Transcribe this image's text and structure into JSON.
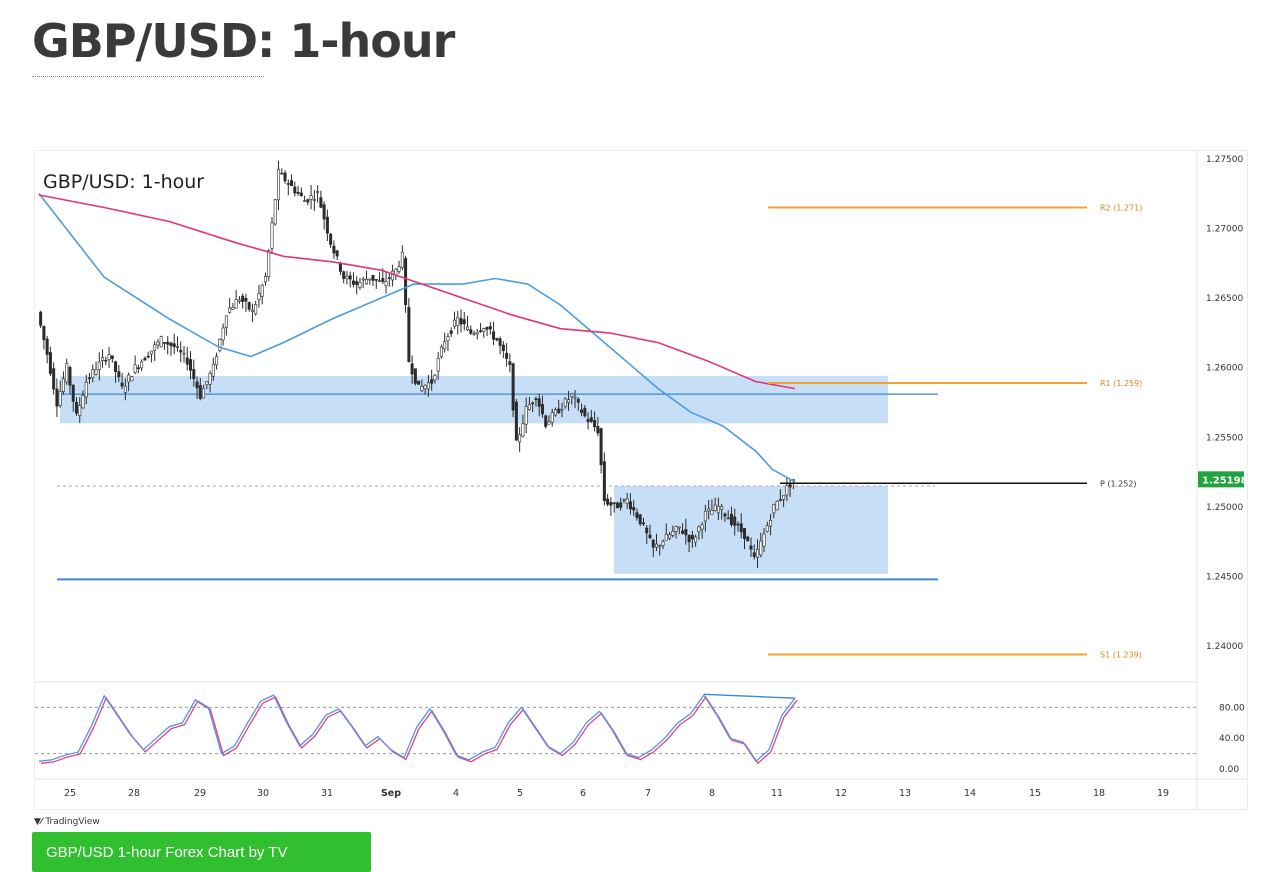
{
  "page": {
    "title": "GBP/USD: 1-hour",
    "tradingview_label": "TradingView",
    "button_label": "GBP/USD 1-hour Forex Chart by TV"
  },
  "colors": {
    "sma_fast": "#4a9ede",
    "sma_slow": "#e2347a",
    "pivot_orange": "#f5a030",
    "zone_fill": "#bcd8f5",
    "support_line": "#3d87d6",
    "candle": "#2b2b2b",
    "price_badge": "#21a340",
    "stoch_k": "#5b8ff0",
    "stoch_d": "#d9487e"
  },
  "chart_data": {
    "type": "candlestick",
    "title": "GBP/USD: 1-hour",
    "price_axis": {
      "range": [
        1.2375,
        1.2752
      ],
      "ticks": [
        "1.27500",
        "1.27000",
        "1.26500",
        "1.26000",
        "1.25500",
        "1.25000",
        "1.24500",
        "1.24000"
      ]
    },
    "x_axis": {
      "ticks": [
        "25",
        "28",
        "29",
        "30",
        "31",
        "Sep",
        "4",
        "5",
        "6",
        "7",
        "8",
        "11",
        "12",
        "13",
        "14",
        "15",
        "18",
        "19"
      ]
    },
    "current_price": "1.25198",
    "pivots": [
      {
        "label": "R2 (1.271)",
        "value": 1.2715
      },
      {
        "label": "R1 (1.259)",
        "value": 1.2589
      },
      {
        "label": "P (1.252)",
        "value": 1.2517
      },
      {
        "label": "S1 (1.239)",
        "value": 1.2394
      }
    ],
    "zones": [
      {
        "name": "upper",
        "from": 1.256,
        "to": 1.2594
      },
      {
        "name": "lower",
        "from": 1.2452,
        "to": 1.2515
      }
    ],
    "support_levels": [
      1.2581,
      1.2448
    ],
    "dashed_level": 1.2515,
    "price_path": [
      [
        0,
        1.264
      ],
      [
        3,
        1.261
      ],
      [
        6,
        1.2575
      ],
      [
        9,
        1.26
      ],
      [
        12,
        1.2565
      ],
      [
        15,
        1.259
      ],
      [
        18,
        1.26
      ],
      [
        22,
        1.261
      ],
      [
        26,
        1.2585
      ],
      [
        30,
        1.26
      ],
      [
        34,
        1.261
      ],
      [
        38,
        1.262
      ],
      [
        42,
        1.2615
      ],
      [
        46,
        1.2605
      ],
      [
        50,
        1.258
      ],
      [
        54,
        1.26
      ],
      [
        58,
        1.264
      ],
      [
        62,
        1.265
      ],
      [
        66,
        1.264
      ],
      [
        70,
        1.2665
      ],
      [
        74,
        1.274
      ],
      [
        78,
        1.273
      ],
      [
        82,
        1.272
      ],
      [
        86,
        1.2725
      ],
      [
        90,
        1.269
      ],
      [
        94,
        1.2665
      ],
      [
        98,
        1.266
      ],
      [
        102,
        1.2665
      ],
      [
        106,
        1.266
      ],
      [
        110,
        1.267
      ],
      [
        112,
        1.268
      ],
      [
        114,
        1.2605
      ],
      [
        117,
        1.2585
      ],
      [
        121,
        1.259
      ],
      [
        125,
        1.262
      ],
      [
        129,
        1.2635
      ],
      [
        133,
        1.2625
      ],
      [
        137,
        1.263
      ],
      [
        141,
        1.262
      ],
      [
        145,
        1.26
      ],
      [
        147,
        1.2545
      ],
      [
        150,
        1.257
      ],
      [
        153,
        1.258
      ],
      [
        156,
        1.256
      ],
      [
        160,
        1.257
      ],
      [
        164,
        1.258
      ],
      [
        168,
        1.2565
      ],
      [
        172,
        1.2555
      ],
      [
        174,
        1.2505
      ],
      [
        177,
        1.25
      ],
      [
        181,
        1.2505
      ],
      [
        185,
        1.249
      ],
      [
        189,
        1.247
      ],
      [
        193,
        1.2478
      ],
      [
        197,
        1.2485
      ],
      [
        201,
        1.2475
      ],
      [
        205,
        1.2495
      ],
      [
        209,
        1.25
      ],
      [
        213,
        1.249
      ],
      [
        217,
        1.248
      ],
      [
        220,
        1.2462
      ],
      [
        223,
        1.248
      ],
      [
        226,
        1.25
      ],
      [
        229,
        1.251
      ],
      [
        232,
        1.252
      ]
    ],
    "sma_fast": [
      [
        0,
        1.2725
      ],
      [
        20,
        1.2665
      ],
      [
        40,
        1.2635
      ],
      [
        55,
        1.2615
      ],
      [
        65,
        1.2608
      ],
      [
        75,
        1.2618
      ],
      [
        90,
        1.2635
      ],
      [
        105,
        1.265
      ],
      [
        115,
        1.266
      ],
      [
        130,
        1.266
      ],
      [
        140,
        1.2664
      ],
      [
        150,
        1.266
      ],
      [
        160,
        1.2645
      ],
      [
        170,
        1.2625
      ],
      [
        180,
        1.2605
      ],
      [
        190,
        1.2585
      ],
      [
        200,
        1.2568
      ],
      [
        210,
        1.2558
      ],
      [
        220,
        1.254
      ],
      [
        225,
        1.2527
      ],
      [
        232,
        1.2518
      ]
    ],
    "sma_slow": [
      [
        0,
        1.2724
      ],
      [
        20,
        1.2715
      ],
      [
        40,
        1.2705
      ],
      [
        60,
        1.269
      ],
      [
        75,
        1.268
      ],
      [
        90,
        1.2676
      ],
      [
        105,
        1.267
      ],
      [
        115,
        1.2662
      ],
      [
        130,
        1.265
      ],
      [
        145,
        1.2638
      ],
      [
        160,
        1.2628
      ],
      [
        175,
        1.2625
      ],
      [
        190,
        1.2618
      ],
      [
        205,
        1.2605
      ],
      [
        220,
        1.259
      ],
      [
        232,
        1.2585
      ]
    ],
    "stochastic": {
      "ticks": [
        "80.00",
        "40.00",
        "0.00"
      ],
      "levels": [
        80,
        20
      ],
      "k": [
        [
          0,
          10
        ],
        [
          4,
          12
        ],
        [
          8,
          18
        ],
        [
          12,
          22
        ],
        [
          16,
          55
        ],
        [
          20,
          95
        ],
        [
          24,
          70
        ],
        [
          28,
          45
        ],
        [
          32,
          25
        ],
        [
          36,
          40
        ],
        [
          40,
          55
        ],
        [
          44,
          60
        ],
        [
          48,
          90
        ],
        [
          52,
          80
        ],
        [
          56,
          20
        ],
        [
          60,
          30
        ],
        [
          64,
          60
        ],
        [
          68,
          88
        ],
        [
          72,
          96
        ],
        [
          76,
          60
        ],
        [
          80,
          30
        ],
        [
          84,
          45
        ],
        [
          88,
          70
        ],
        [
          92,
          78
        ],
        [
          96,
          55
        ],
        [
          100,
          30
        ],
        [
          104,
          42
        ],
        [
          108,
          25
        ],
        [
          112,
          15
        ],
        [
          116,
          55
        ],
        [
          120,
          78
        ],
        [
          124,
          50
        ],
        [
          128,
          18
        ],
        [
          132,
          12
        ],
        [
          136,
          22
        ],
        [
          140,
          28
        ],
        [
          144,
          60
        ],
        [
          148,
          80
        ],
        [
          152,
          55
        ],
        [
          156,
          30
        ],
        [
          160,
          20
        ],
        [
          164,
          35
        ],
        [
          168,
          60
        ],
        [
          172,
          75
        ],
        [
          176,
          50
        ],
        [
          180,
          20
        ],
        [
          184,
          15
        ],
        [
          188,
          25
        ],
        [
          192,
          40
        ],
        [
          196,
          60
        ],
        [
          200,
          72
        ],
        [
          204,
          96
        ],
        [
          208,
          70
        ],
        [
          212,
          40
        ],
        [
          216,
          35
        ],
        [
          220,
          10
        ],
        [
          224,
          25
        ],
        [
          228,
          70
        ],
        [
          232,
          92
        ]
      ],
      "divergence": [
        [
          204,
          97
        ],
        [
          232,
          92
        ]
      ]
    }
  }
}
